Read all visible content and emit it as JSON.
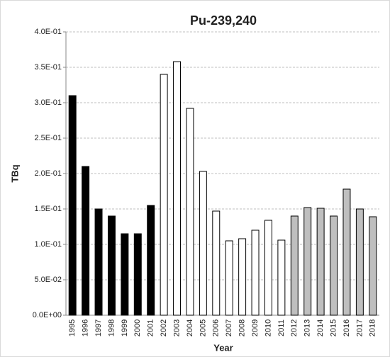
{
  "chart_data": {
    "type": "bar",
    "title": "Pu-239,240",
    "x_label": "Year",
    "y_label": "TBq",
    "categories": [
      "1995",
      "1996",
      "1997",
      "1998",
      "1999",
      "2000",
      "2001",
      "2002",
      "2003",
      "2004",
      "2005",
      "2006",
      "2007",
      "2008",
      "2009",
      "2010",
      "2011",
      "2012",
      "2013",
      "2014",
      "2015",
      "2016",
      "2017",
      "2018"
    ],
    "values": [
      0.31,
      0.21,
      0.15,
      0.14,
      0.115,
      0.115,
      0.155,
      0.34,
      0.358,
      0.292,
      0.203,
      0.147,
      0.105,
      0.108,
      0.12,
      0.134,
      0.106,
      0.14,
      0.152,
      0.151,
      0.14,
      0.178,
      0.15,
      0.139
    ],
    "colors": [
      "#000000",
      "#000000",
      "#000000",
      "#000000",
      "#000000",
      "#000000",
      "#000000",
      "#ffffff",
      "#ffffff",
      "#ffffff",
      "#ffffff",
      "#ffffff",
      "#ffffff",
      "#ffffff",
      "#ffffff",
      "#ffffff",
      "#ffffff",
      "#bfbfbf",
      "#bfbfbf",
      "#bfbfbf",
      "#bfbfbf",
      "#bfbfbf",
      "#bfbfbf",
      "#bfbfbf"
    ],
    "ylim": [
      0,
      0.4
    ],
    "yticks": [
      {
        "value": 0,
        "label": "0.0E+00"
      },
      {
        "value": 0.05,
        "label": "5.0E-02"
      },
      {
        "value": 0.1,
        "label": "1.0E-01"
      },
      {
        "value": 0.15,
        "label": "1.5E-01"
      },
      {
        "value": 0.2,
        "label": "2.0E-01"
      },
      {
        "value": 0.25,
        "label": "2.5E-01"
      },
      {
        "value": 0.3,
        "label": "3.0E-01"
      },
      {
        "value": 0.35,
        "label": "3.5E-01"
      },
      {
        "value": 0.4,
        "label": "4.0E-01"
      }
    ],
    "grid": true
  }
}
